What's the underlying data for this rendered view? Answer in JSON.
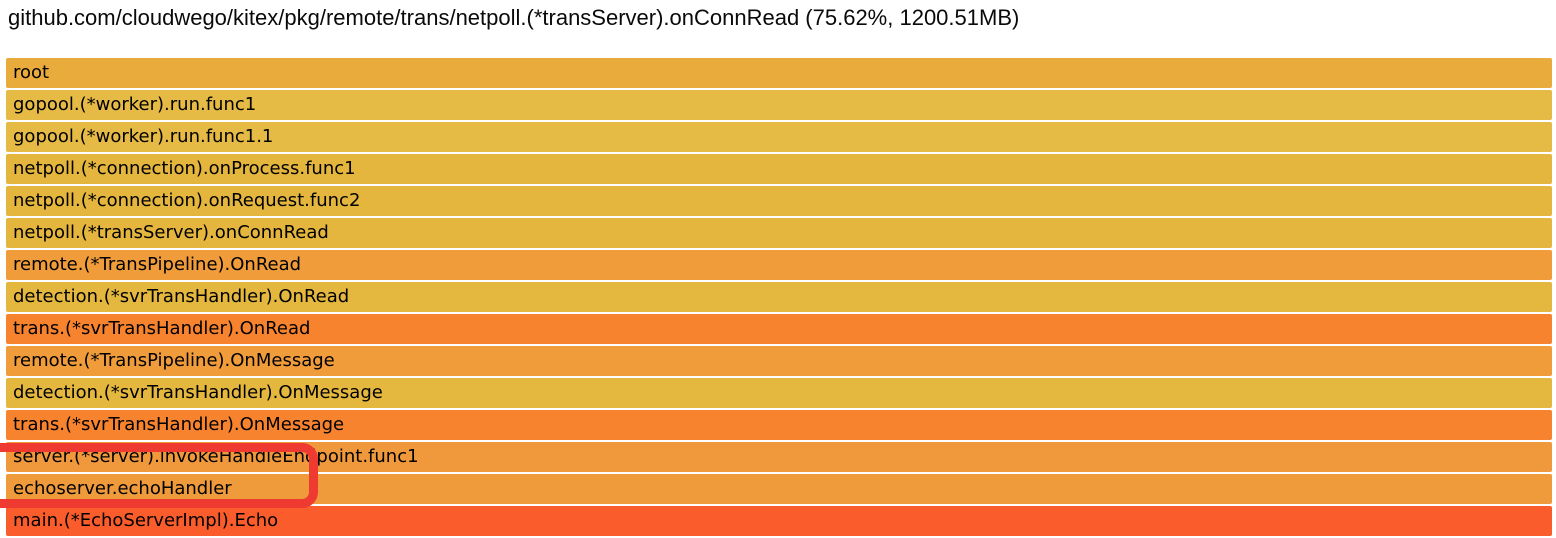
{
  "header": {
    "title": "github.com/cloudwego/kitex/pkg/remote/trans/netpoll.(*transServer).onConnRead (75.62%, 1200.51MB)"
  },
  "chart_data": {
    "type": "bar",
    "subtype": "flamegraph-callstack",
    "title": "github.com/cloudwego/kitex/pkg/remote/trans/netpoll.(*transServer).onConnRead (75.62%, 1200.51MB)",
    "unit": "MB",
    "selected": {
      "function": "github.com/cloudwego/kitex/pkg/remote/trans/netpoll.(*transServer).onConnRead",
      "percent": "75.62%",
      "value": "1200.51MB"
    },
    "legend_position": "none",
    "grid": false,
    "frames": [
      {
        "depth": 0,
        "label": "root",
        "width_pct": 100,
        "color": "#eaab3d"
      },
      {
        "depth": 1,
        "label": "gopool.(*worker).run.func1",
        "width_pct": 100,
        "color": "#e5ba45"
      },
      {
        "depth": 2,
        "label": "gopool.(*worker).run.func1.1",
        "width_pct": 100,
        "color": "#e5ba45"
      },
      {
        "depth": 3,
        "label": "netpoll.(*connection).onProcess.func1",
        "width_pct": 100,
        "color": "#e4b63d"
      },
      {
        "depth": 4,
        "label": "netpoll.(*connection).onRequest.func2",
        "width_pct": 100,
        "color": "#e4b63d"
      },
      {
        "depth": 5,
        "label": "netpoll.(*transServer).onConnRead",
        "width_pct": 100,
        "color": "#e4b63d"
      },
      {
        "depth": 6,
        "label": "remote.(*TransPipeline).OnRead",
        "width_pct": 100,
        "color": "#f09c3b"
      },
      {
        "depth": 7,
        "label": "detection.(*svrTransHandler).OnRead",
        "width_pct": 100,
        "color": "#e4b83f"
      },
      {
        "depth": 8,
        "label": "trans.(*svrTransHandler).OnRead",
        "width_pct": 100,
        "color": "#f8832e"
      },
      {
        "depth": 9,
        "label": "remote.(*TransPipeline).OnMessage",
        "width_pct": 100,
        "color": "#f09c3b"
      },
      {
        "depth": 10,
        "label": "detection.(*svrTransHandler).OnMessage",
        "width_pct": 100,
        "color": "#e4b83f"
      },
      {
        "depth": 11,
        "label": "trans.(*svrTransHandler).OnMessage",
        "width_pct": 100,
        "color": "#f8832e"
      },
      {
        "depth": 12,
        "label": "server.(*server).invokeHandleEndpoint.func1",
        "width_pct": 100,
        "color": "#f0993c"
      },
      {
        "depth": 13,
        "label": "echoserver.echoHandler",
        "width_pct": 100,
        "color": "#ef9a3b"
      },
      {
        "depth": 14,
        "label": "main.(*EchoServerImpl).Echo",
        "width_pct": 100,
        "color": "#fb5c2b"
      }
    ]
  },
  "annotation": {
    "shape": "red-rounded-rectangle",
    "color": "#ee3a31",
    "highlighted_frames": [
      "server.(*server).invokeHandleEndpoint.func1",
      "echoserver.echoHandler"
    ]
  }
}
